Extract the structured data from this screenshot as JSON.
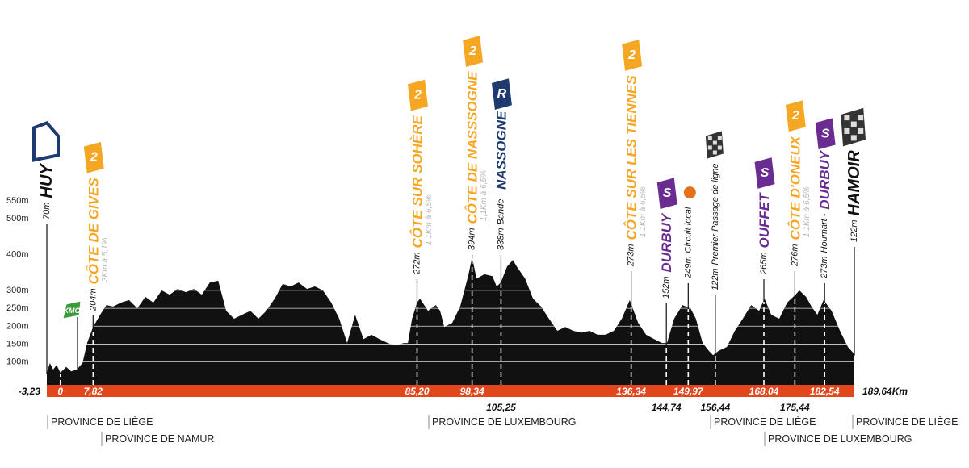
{
  "chart_data": {
    "type": "area",
    "color": "#111111",
    "band_color": "#e2461b",
    "grid": true,
    "xlim": [
      -3.23,
      189.64
    ],
    "ylim": [
      0,
      550
    ],
    "x": [
      -3.23,
      -2.5,
      -1.7,
      -0.9,
      0,
      1.4,
      2.6,
      3.9,
      5.3,
      6.4,
      7.82,
      9.5,
      11.0,
      12.6,
      14.5,
      16.4,
      18.4,
      20.3,
      22.2,
      24.2,
      26.1,
      28.0,
      30.0,
      31.9,
      33.8,
      35.7,
      37.7,
      39.6,
      41.5,
      43.4,
      45.4,
      47.3,
      49.2,
      51.2,
      53.1,
      55.0,
      56.9,
      58.9,
      60.8,
      62.7,
      64.7,
      66.6,
      68.5,
      70.4,
      72.4,
      74.3,
      76.2,
      78.2,
      80.1,
      82.0,
      83.0,
      84.0,
      85.2,
      85.9,
      87.8,
      89.7,
      90.7,
      91.7,
      93.6,
      95.5,
      97.5,
      98.34,
      99.4,
      101.3,
      103.2,
      104.2,
      105.2,
      106.7,
      108.1,
      109.0,
      111.0,
      112.9,
      114.8,
      116.7,
      118.7,
      120.6,
      122.5,
      124.5,
      126.4,
      128.3,
      130.2,
      132.2,
      134.1,
      136.0,
      138.0,
      139.9,
      141.8,
      143.7,
      144.9,
      146.6,
      148.6,
      150.5,
      151.8,
      153.4,
      154.9,
      155.9,
      157.2,
      159.2,
      161.1,
      163.0,
      165.0,
      166.9,
      168.2,
      169.8,
      171.7,
      173.6,
      175.6,
      176.5,
      178.1,
      179.4,
      180.8,
      182.3,
      184.2,
      186.2,
      188.1,
      189.64
    ],
    "values": [
      70,
      97,
      79,
      92,
      70,
      86,
      74,
      79,
      97,
      153,
      198,
      232,
      259,
      255,
      266,
      273,
      250,
      282,
      266,
      300,
      288,
      304,
      295,
      304,
      288,
      322,
      327,
      243,
      221,
      232,
      243,
      221,
      243,
      277,
      318,
      311,
      322,
      304,
      311,
      300,
      266,
      221,
      153,
      232,
      164,
      176,
      164,
      153,
      146,
      153,
      153,
      221,
      266,
      277,
      243,
      259,
      243,
      198,
      209,
      255,
      345,
      394,
      333,
      345,
      340,
      311,
      322,
      367,
      385,
      367,
      333,
      277,
      255,
      221,
      187,
      198,
      187,
      182,
      187,
      176,
      176,
      187,
      221,
      273,
      209,
      176,
      164,
      153,
      153,
      221,
      259,
      250,
      221,
      153,
      131,
      119,
      131,
      142,
      187,
      221,
      259,
      243,
      277,
      232,
      221,
      266,
      288,
      300,
      282,
      255,
      232,
      273,
      243,
      187,
      142,
      122
    ],
    "xticks": [
      {
        "value": -3.23,
        "label": "-3,23"
      },
      0,
      {
        "value": 7.82,
        "label": "7,82"
      },
      {
        "value": 85.2,
        "label": "85,20"
      },
      {
        "value": 98.34,
        "label": "98,34"
      },
      {
        "value": 105.25,
        "label": "105,25"
      },
      {
        "value": 136.34,
        "label": "136,34"
      },
      {
        "value": 144.74,
        "label": "144,74"
      },
      {
        "value": 149.97,
        "label": "149,97"
      },
      {
        "value": 156.44,
        "label": "156,44"
      },
      {
        "value": 168.04,
        "label": "168,04"
      },
      {
        "value": 175.44,
        "label": "175,44"
      },
      {
        "value": 182.54,
        "label": "182,54"
      },
      {
        "value": 189.64,
        "label": "189,64Km"
      }
    ],
    "yticks": [
      {
        "value": 100,
        "label": "100m"
      },
      {
        "value": 150,
        "label": "150m"
      },
      {
        "value": 200,
        "label": "200m"
      },
      {
        "value": 250,
        "label": "250m"
      },
      {
        "value": 300,
        "label": "300m"
      },
      {
        "value": 400,
        "label": "400m"
      },
      {
        "value": 500,
        "label": "500m"
      },
      {
        "value": 550,
        "label": "550m"
      }
    ],
    "intermediate_sprint": "KMO",
    "points": [
      {
        "altitude": "70m",
        "name": "HUY",
        "color": "#111111"
      },
      {
        "altitude": "204m",
        "name": "CÔTE DE GIVES",
        "detail": "3Km à 5,1%",
        "color": "#f5a623",
        "badge": "2"
      },
      {
        "altitude": "272m",
        "name": "CÔTE SUR SOHÈRE",
        "detail": "1,1Km à 6,5%",
        "color": "#f5a623",
        "badge": "2"
      },
      {
        "altitude": "394m",
        "name": "CÔTE DE NASSSOGNE",
        "detail": "1,1Km à 6,5%",
        "color": "#f5a623",
        "badge": "2"
      },
      {
        "altitude": "338m",
        "prefix": "Bande -",
        "name": "NASSOGNE",
        "color": "#1f3a6e",
        "badge": "R"
      },
      {
        "altitude": "273m",
        "name": "CÔTE SUR LES TIENNES",
        "detail": "1,1Km à 6,5%",
        "color": "#f5a623",
        "badge": "2"
      },
      {
        "altitude": "152m",
        "name": "DURBUY",
        "color": "#6a2c91",
        "badge": "S"
      },
      {
        "altitude": "249m",
        "prefix": "Circuit local"
      },
      {
        "altitude": "122m",
        "prefix": "Premier Passage de ligne"
      },
      {
        "altitude": "265m",
        "name": "OUFFET",
        "color": "#6a2c91",
        "badge": "S"
      },
      {
        "altitude": "276m",
        "name": "CÔTE D'ONEUX",
        "detail": "1,1Km à 6,5%",
        "color": "#f5a623",
        "badge": "2"
      },
      {
        "altitude": "273m",
        "prefix": "Houmart -",
        "name": "DURBUY",
        "color": "#6a2c91",
        "badge": "S"
      },
      {
        "altitude": "122m",
        "name": "HAMOIR",
        "color": "#111111"
      }
    ],
    "provinces": [
      "PROVINCE DE LIÈGE",
      "PROVINCE DE NAMUR",
      "PROVINCE DE LUXEMBOURG",
      "PROVINCE DE LIÈGE",
      "PROVINCE DE LUXEMBOURG",
      "PROVINCE DE LIÈGE"
    ]
  }
}
